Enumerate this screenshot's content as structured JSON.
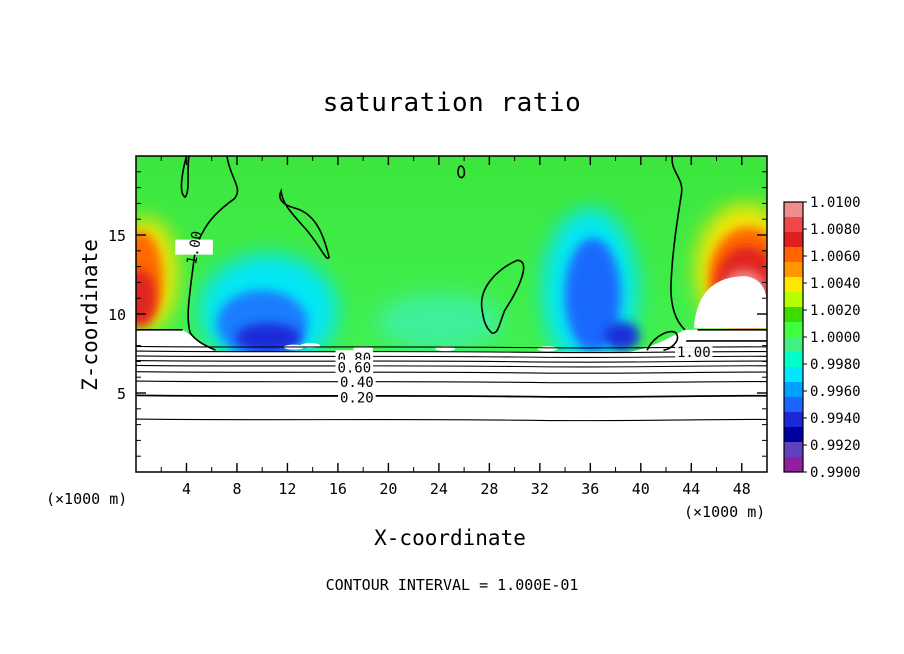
{
  "chart_data": {
    "type": "heatmap",
    "title": "saturation ratio",
    "xlabel": "X-coordinate",
    "ylabel": "Z-coordinate",
    "x_unit": "(×1000 m)",
    "x_unit_repeat": "(×1000 m)",
    "xlim": [
      0,
      50
    ],
    "ylim": [
      0,
      20
    ],
    "x_ticks": [
      "4",
      "8",
      "12",
      "16",
      "20",
      "24",
      "28",
      "32",
      "36",
      "40",
      "44",
      "48"
    ],
    "y_ticks": [
      "5",
      "10",
      "15"
    ],
    "footer": "CONTOUR INTERVAL = 1.000E-01",
    "colorbar": {
      "levels": [
        "1.0100",
        "1.0080",
        "1.0060",
        "1.0040",
        "1.0020",
        "1.0000",
        "0.9980",
        "0.9960",
        "0.9940",
        "0.9920",
        "0.9900"
      ],
      "colors": [
        "#f08c8c",
        "#f04848",
        "#e02020",
        "#ff6400",
        "#ff9600",
        "#ffe600",
        "#b4ff00",
        "#3cdc00",
        "#40ff40",
        "#40f080",
        "#00ffc8",
        "#00e6ff",
        "#00a0ff",
        "#1e64ff",
        "#1c28d8",
        "#0000a0",
        "#6040c0",
        "#9020a0"
      ]
    },
    "contour_labels": [
      {
        "label": "1.00",
        "x": 4.6,
        "z": 14.2
      },
      {
        "label": "1.00",
        "x": 44.2,
        "z": 7.6
      },
      {
        "label": "0.80",
        "x": 17.3,
        "z": 7.2
      },
      {
        "label": "0.60",
        "x": 17.3,
        "z": 6.6
      },
      {
        "label": "0.40",
        "x": 17.5,
        "z": 5.7
      },
      {
        "label": "0.20",
        "x": 17.5,
        "z": 4.7
      }
    ],
    "low_level_contours": [
      0.9,
      0.8,
      0.7,
      0.6,
      0.5,
      0.4,
      0.3,
      0.2,
      0.1
    ],
    "notes": "Saturated (~1.000) green field above z≈8 km; subsaturated blue cores near x≈8-12 and x≈34-38 (0.992-0.996); supersaturated red/pink near lateral boundaries (x<4, x>44, z≈9-15); strongly subsaturated layered region below z≈8 km."
  }
}
